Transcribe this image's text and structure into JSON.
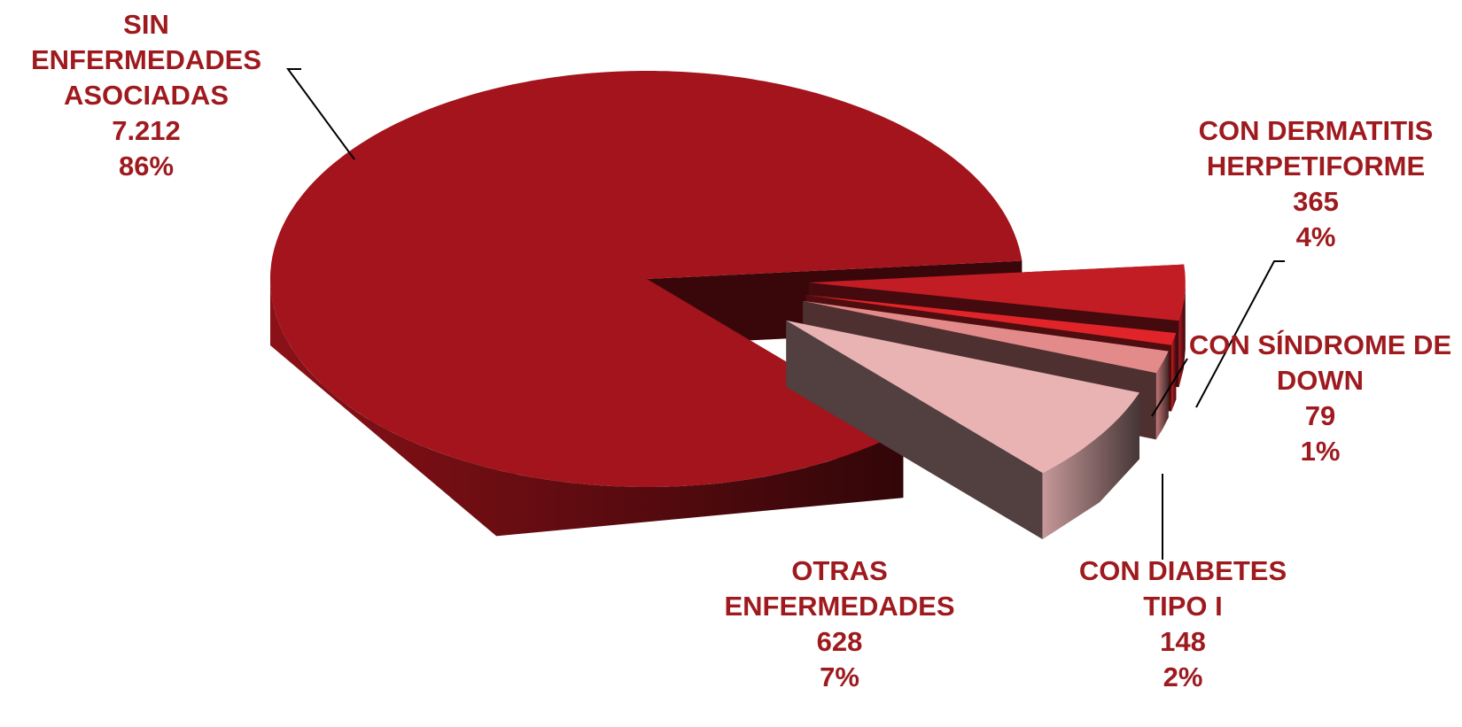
{
  "chart_data": {
    "type": "pie",
    "categories": [
      "SIN ENFERMEDADES ASOCIADAS",
      "CON DERMATITIS HERPETIFORME",
      "CON SÍNDROME DE DOWN",
      "CON DIABETES TIPO I",
      "OTRAS ENFERMEDADES"
    ],
    "values": [
      7212,
      365,
      79,
      148,
      628
    ],
    "value_labels": [
      "7.212",
      "365",
      "79",
      "148",
      "628"
    ],
    "percent_labels": [
      "86%",
      "4%",
      "1%",
      "2%",
      "7%"
    ],
    "colors": [
      "#a3141c",
      "#c21c24",
      "#e0242a",
      "#e38a8a",
      "#e9b3b4"
    ]
  }
}
